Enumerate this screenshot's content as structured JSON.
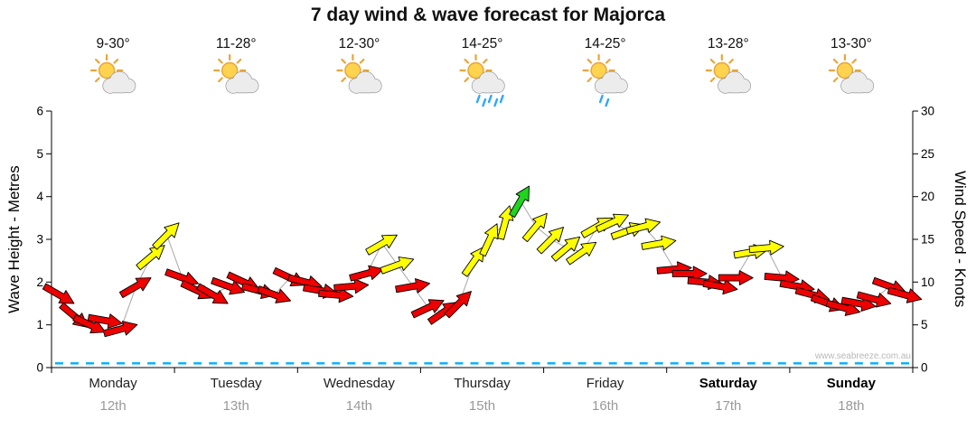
{
  "title": "7 day wind & wave forecast for Majorca",
  "watermark": "www.seabreeze.com.au",
  "axes": {
    "wave": {
      "label": "Wave Height - Metres",
      "min": 0,
      "max": 6,
      "step": 1
    },
    "wind": {
      "label": "Wind Speed - Knots",
      "min": 0,
      "max": 30,
      "step": 5
    }
  },
  "days": [
    {
      "name": "Monday",
      "date": "12th",
      "temp": "9-30°",
      "icon": "sun-cloud",
      "rain_drops": 0,
      "bold": false
    },
    {
      "name": "Tuesday",
      "date": "13th",
      "temp": "11-28°",
      "icon": "sun-cloud",
      "rain_drops": 0,
      "bold": false
    },
    {
      "name": "Wednesday",
      "date": "14th",
      "temp": "12-30°",
      "icon": "sun-cloud",
      "rain_drops": 0,
      "bold": false
    },
    {
      "name": "Thursday",
      "date": "15th",
      "temp": "14-25°",
      "icon": "sun-cloud-rain",
      "rain_drops": 5,
      "bold": false
    },
    {
      "name": "Friday",
      "date": "16th",
      "temp": "14-25°",
      "icon": "sun-cloud-rain",
      "rain_drops": 2,
      "bold": false
    },
    {
      "name": "Saturday",
      "date": "17th",
      "temp": "13-28°",
      "icon": "sun-cloud",
      "rain_drops": 0,
      "bold": true
    },
    {
      "name": "Sunday",
      "date": "18th",
      "temp": "13-30°",
      "icon": "sun-cloud",
      "rain_drops": 0,
      "bold": true
    }
  ],
  "chart_data": {
    "type": "wind-arrow-timeseries-with-wave-line",
    "points_per_day": 8,
    "wind_knots": [
      8.5,
      6,
      5,
      5.5,
      4.5,
      9.5,
      13,
      15.5,
      10.5,
      9,
      8.5,
      9.5,
      10,
      9,
      8.5,
      10.5,
      10,
      9,
      8.5,
      9.5,
      11,
      14.5,
      12,
      9.5,
      7,
      6.5,
      7.5,
      12.5,
      15,
      17,
      19.5,
      16.5,
      15,
      14,
      13.5,
      16.5,
      17,
      16,
      16.5,
      14.5,
      11.5,
      11,
      10,
      9.5,
      10.5,
      13.5,
      14,
      10.5,
      9.5,
      8.5,
      7.5,
      7,
      7.5,
      8,
      9.5,
      8.5
    ],
    "wind_dir_deg_ccw_from_east": [
      -30,
      -40,
      -25,
      -10,
      15,
      30,
      40,
      45,
      -20,
      -25,
      -30,
      -20,
      -25,
      -15,
      -20,
      -25,
      -15,
      -10,
      -5,
      5,
      15,
      30,
      20,
      10,
      25,
      35,
      45,
      55,
      65,
      75,
      60,
      50,
      45,
      40,
      35,
      30,
      25,
      20,
      15,
      10,
      5,
      0,
      -5,
      -10,
      0,
      10,
      5,
      -5,
      -10,
      -15,
      -20,
      -15,
      -10,
      -15,
      -20,
      -15
    ],
    "wave_m": [
      0.1,
      0.1,
      0.1,
      0.1,
      0.1,
      0.1,
      0.1,
      0.1,
      0.1,
      0.1,
      0.1,
      0.1,
      0.1,
      0.1,
      0.1,
      0.1,
      0.1,
      0.1,
      0.1,
      0.1,
      0.1,
      0.1,
      0.1,
      0.1,
      0.1,
      0.1,
      0.1,
      0.1,
      0.1,
      0.1,
      0.1,
      0.1,
      0.1,
      0.1,
      0.1,
      0.1,
      0.1,
      0.1,
      0.1,
      0.1,
      0.1,
      0.1,
      0.1,
      0.1,
      0.1,
      0.1,
      0.1,
      0.1,
      0.1,
      0.1,
      0.1,
      0.1,
      0.1,
      0.1,
      0.1,
      0.1
    ],
    "thresholds_knots": {
      "yellow_from": 12,
      "green_from": 18
    },
    "colors": {
      "light_wind": "#ee0000",
      "moderate_wind": "#ffff00",
      "fresh_wind": "#1fd41f",
      "wave": "#00b0ff",
      "connector": "#a8a8a8"
    }
  }
}
